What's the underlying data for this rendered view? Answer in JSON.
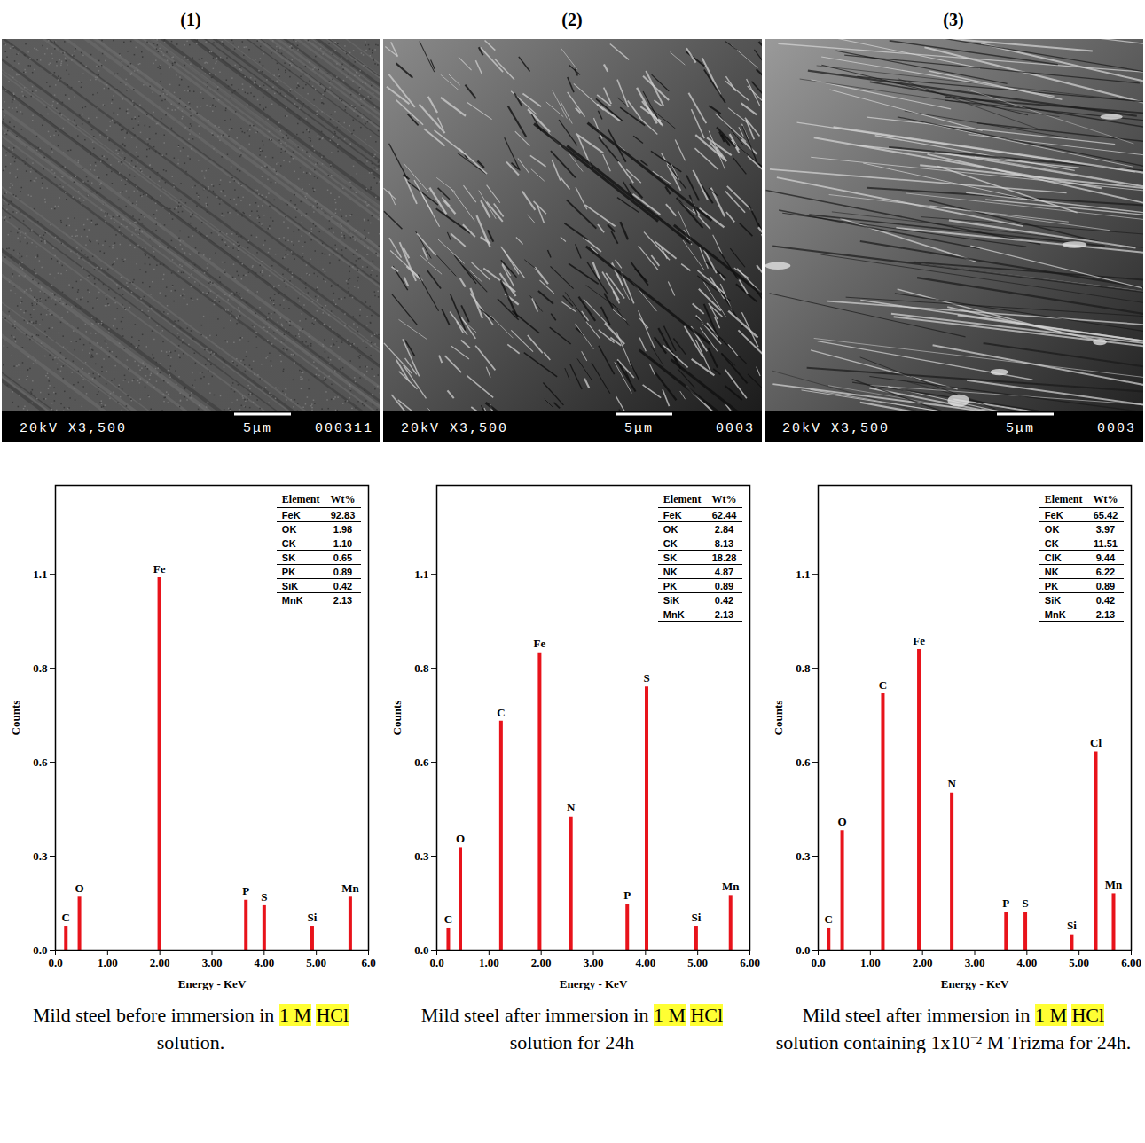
{
  "panel_labels": [
    "(1)",
    "(2)",
    "(3)"
  ],
  "sem_images": [
    {
      "bar_left": "20kV X3,500",
      "scale": "5μm",
      "code": "000311"
    },
    {
      "bar_left": "20kV X3,500",
      "scale": "5μm",
      "code": "0003"
    },
    {
      "bar_left": "20kV X3,500",
      "scale": "5μm",
      "code": "0003"
    }
  ],
  "chart_data": [
    {
      "type": "bar",
      "x_label": "Energy - KeV",
      "y_label": "Counts",
      "color": "#e8131b",
      "xlim": [
        0,
        6
      ],
      "ylim": [
        0,
        1.36
      ],
      "xticks": [
        {
          "value": 0,
          "label": "0.0"
        },
        {
          "value": 1,
          "label": "1.00"
        },
        {
          "value": 2,
          "label": "2.00"
        },
        {
          "value": 3,
          "label": "3.00"
        },
        {
          "value": 4,
          "label": "4.00"
        },
        {
          "value": 5,
          "label": "5.00"
        },
        {
          "value": 6,
          "label": "6.0"
        }
      ],
      "yticks": [
        {
          "value": 0,
          "label": "0.0"
        },
        {
          "value": 0.275,
          "label": "0.3"
        },
        {
          "value": 0.55,
          "label": "0.6"
        },
        {
          "value": 0.825,
          "label": "0.8"
        },
        {
          "value": 1.1,
          "label": "1.1"
        }
      ],
      "x": [
        0.2,
        0.46,
        1.99,
        3.65,
        4.0,
        4.92,
        5.65
      ],
      "values": [
        0.07,
        0.155,
        1.09,
        0.146,
        0.13,
        0.07,
        0.155
      ],
      "annotations": [
        "C",
        "O",
        "Fe",
        "P",
        "S",
        "Si",
        "Mn"
      ],
      "table": {
        "header": [
          "Element",
          "Wt%"
        ],
        "rows": [
          [
            "FeK",
            "92.83"
          ],
          [
            "OK",
            "1.98"
          ],
          [
            "CK",
            "1.10"
          ],
          [
            "SK",
            "0.65"
          ],
          [
            "PK",
            "0.89"
          ],
          [
            "SiK",
            "0.42"
          ],
          [
            "MnK",
            "2.13"
          ]
        ]
      }
    },
    {
      "type": "bar",
      "x_label": "Energy - KeV",
      "y_label": "Counts",
      "color": "#e8131b",
      "xlim": [
        0,
        6
      ],
      "ylim": [
        0,
        1.36
      ],
      "xticks": [
        {
          "value": 0,
          "label": "0.0"
        },
        {
          "value": 1,
          "label": "1.00"
        },
        {
          "value": 2,
          "label": "2.00"
        },
        {
          "value": 3,
          "label": "3.00"
        },
        {
          "value": 4,
          "label": "4.00"
        },
        {
          "value": 5,
          "label": "5.00"
        },
        {
          "value": 6,
          "label": "6.00"
        }
      ],
      "yticks": [
        {
          "value": 0,
          "label": "0.0"
        },
        {
          "value": 0.275,
          "label": "0.3"
        },
        {
          "value": 0.55,
          "label": "0.6"
        },
        {
          "value": 0.825,
          "label": "0.8"
        },
        {
          "value": 1.1,
          "label": "1.1"
        }
      ],
      "x": [
        0.22,
        0.45,
        1.23,
        1.97,
        2.57,
        3.65,
        4.02,
        4.97,
        5.63
      ],
      "values": [
        0.065,
        0.3,
        0.67,
        0.87,
        0.39,
        0.135,
        0.77,
        0.07,
        0.16
      ],
      "annotations": [
        "C",
        "O",
        "C",
        "Fe",
        "N",
        "P",
        "S",
        "Si",
        "Mn"
      ],
      "table": {
        "header": [
          "Element",
          "Wt%"
        ],
        "rows": [
          [
            "FeK",
            "62.44"
          ],
          [
            "OK",
            "2.84"
          ],
          [
            "CK",
            "8.13"
          ],
          [
            "SK",
            "18.28"
          ],
          [
            "NK",
            "4.87"
          ],
          [
            "PK",
            "0.89"
          ],
          [
            "SiK",
            "0.42"
          ],
          [
            "MnK",
            "2.13"
          ]
        ]
      }
    },
    {
      "type": "bar",
      "x_label": "Energy - KeV",
      "y_label": "Counts",
      "color": "#e8131b",
      "xlim": [
        0,
        6
      ],
      "ylim": [
        0,
        1.36
      ],
      "xticks": [
        {
          "value": 0,
          "label": "0.0"
        },
        {
          "value": 1,
          "label": "1.00"
        },
        {
          "value": 2,
          "label": "2.00"
        },
        {
          "value": 3,
          "label": "3.00"
        },
        {
          "value": 4,
          "label": "4.00"
        },
        {
          "value": 5,
          "label": "5.00"
        },
        {
          "value": 6,
          "label": "6.00"
        }
      ],
      "yticks": [
        {
          "value": 0,
          "label": "0.0"
        },
        {
          "value": 0.275,
          "label": "0.3"
        },
        {
          "value": 0.55,
          "label": "0.6"
        },
        {
          "value": 0.825,
          "label": "0.8"
        },
        {
          "value": 1.1,
          "label": "1.1"
        }
      ],
      "x": [
        0.2,
        0.46,
        1.24,
        1.93,
        2.56,
        3.6,
        3.97,
        4.86,
        5.32,
        5.66
      ],
      "values": [
        0.065,
        0.35,
        0.75,
        0.88,
        0.46,
        0.11,
        0.11,
        0.045,
        0.58,
        0.165
      ],
      "annotations": [
        "C",
        "O",
        "C",
        "Fe",
        "N",
        "P",
        "S",
        "Si",
        "Cl",
        "Mn"
      ],
      "table": {
        "header": [
          "Element",
          "Wt%"
        ],
        "rows": [
          [
            "FeK",
            "65.42"
          ],
          [
            "OK",
            "3.97"
          ],
          [
            "CK",
            "11.51"
          ],
          [
            "ClK",
            "9.44"
          ],
          [
            "NK",
            "6.22"
          ],
          [
            "PK",
            "0.89"
          ],
          [
            "SiK",
            "0.42"
          ],
          [
            "MnK",
            "2.13"
          ]
        ]
      }
    }
  ],
  "captions": [
    "Mild steel before immersion in 1 M HCl solution.",
    "Mild steel after immersion in 1 M HCl solution for 24h",
    "Mild steel after immersion in 1 M HCl solution containing 1x10⁻² M Trizma for 24h."
  ],
  "highlighted": [
    "1 M",
    "HCl"
  ]
}
